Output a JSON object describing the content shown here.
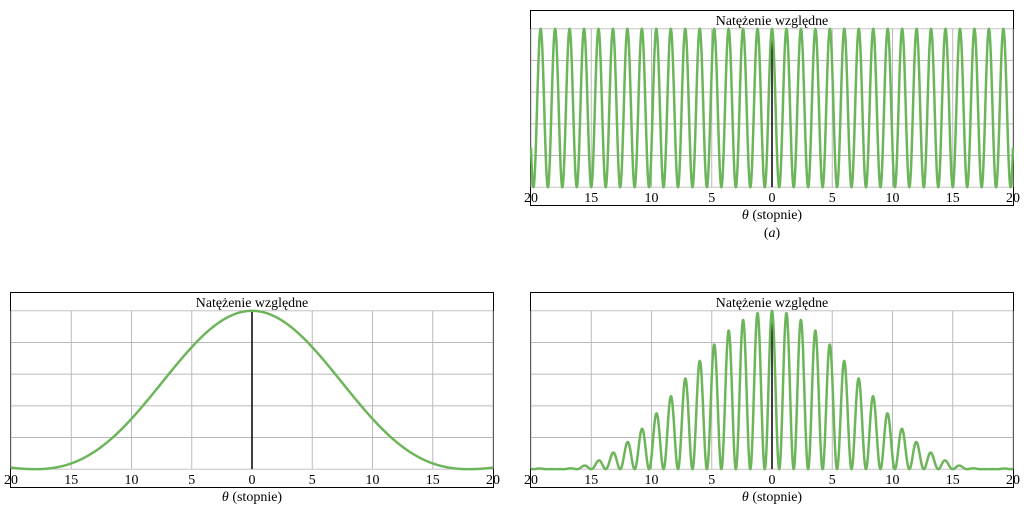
{
  "global": {
    "x_min": -20,
    "x_max": 20,
    "x_ticks": [
      -20,
      -15,
      -10,
      -5,
      0,
      5,
      10,
      15,
      20
    ],
    "x_tick_labels": [
      "20",
      "15",
      "10",
      "5",
      "0",
      "5",
      "10",
      "15",
      "20"
    ],
    "y_grid_lines": 5,
    "grid_color": "#bababa",
    "curve_color": "#6db55a",
    "curve_width": 2.5,
    "background_color": "#ffffff"
  },
  "chart_a": {
    "title": "Natężenie względne",
    "xlabel_prefix": "θ",
    "xlabel_suffix": " (stopnie)",
    "sublabel": "(a)",
    "interference_period_deg": 1.2,
    "diffraction_first_min_deg": null
  },
  "chart_b": {
    "title": "Natężenie względne",
    "xlabel_prefix": "θ",
    "xlabel_suffix": " (stopnie)",
    "sublabel": null,
    "diffraction_first_min_deg": 18
  },
  "chart_c": {
    "title": "Natężenie względne",
    "xlabel_prefix": "θ",
    "xlabel_suffix": " (stopnie)",
    "sublabel": null,
    "interference_period_deg": 1.2,
    "diffraction_first_min_deg": 18
  }
}
